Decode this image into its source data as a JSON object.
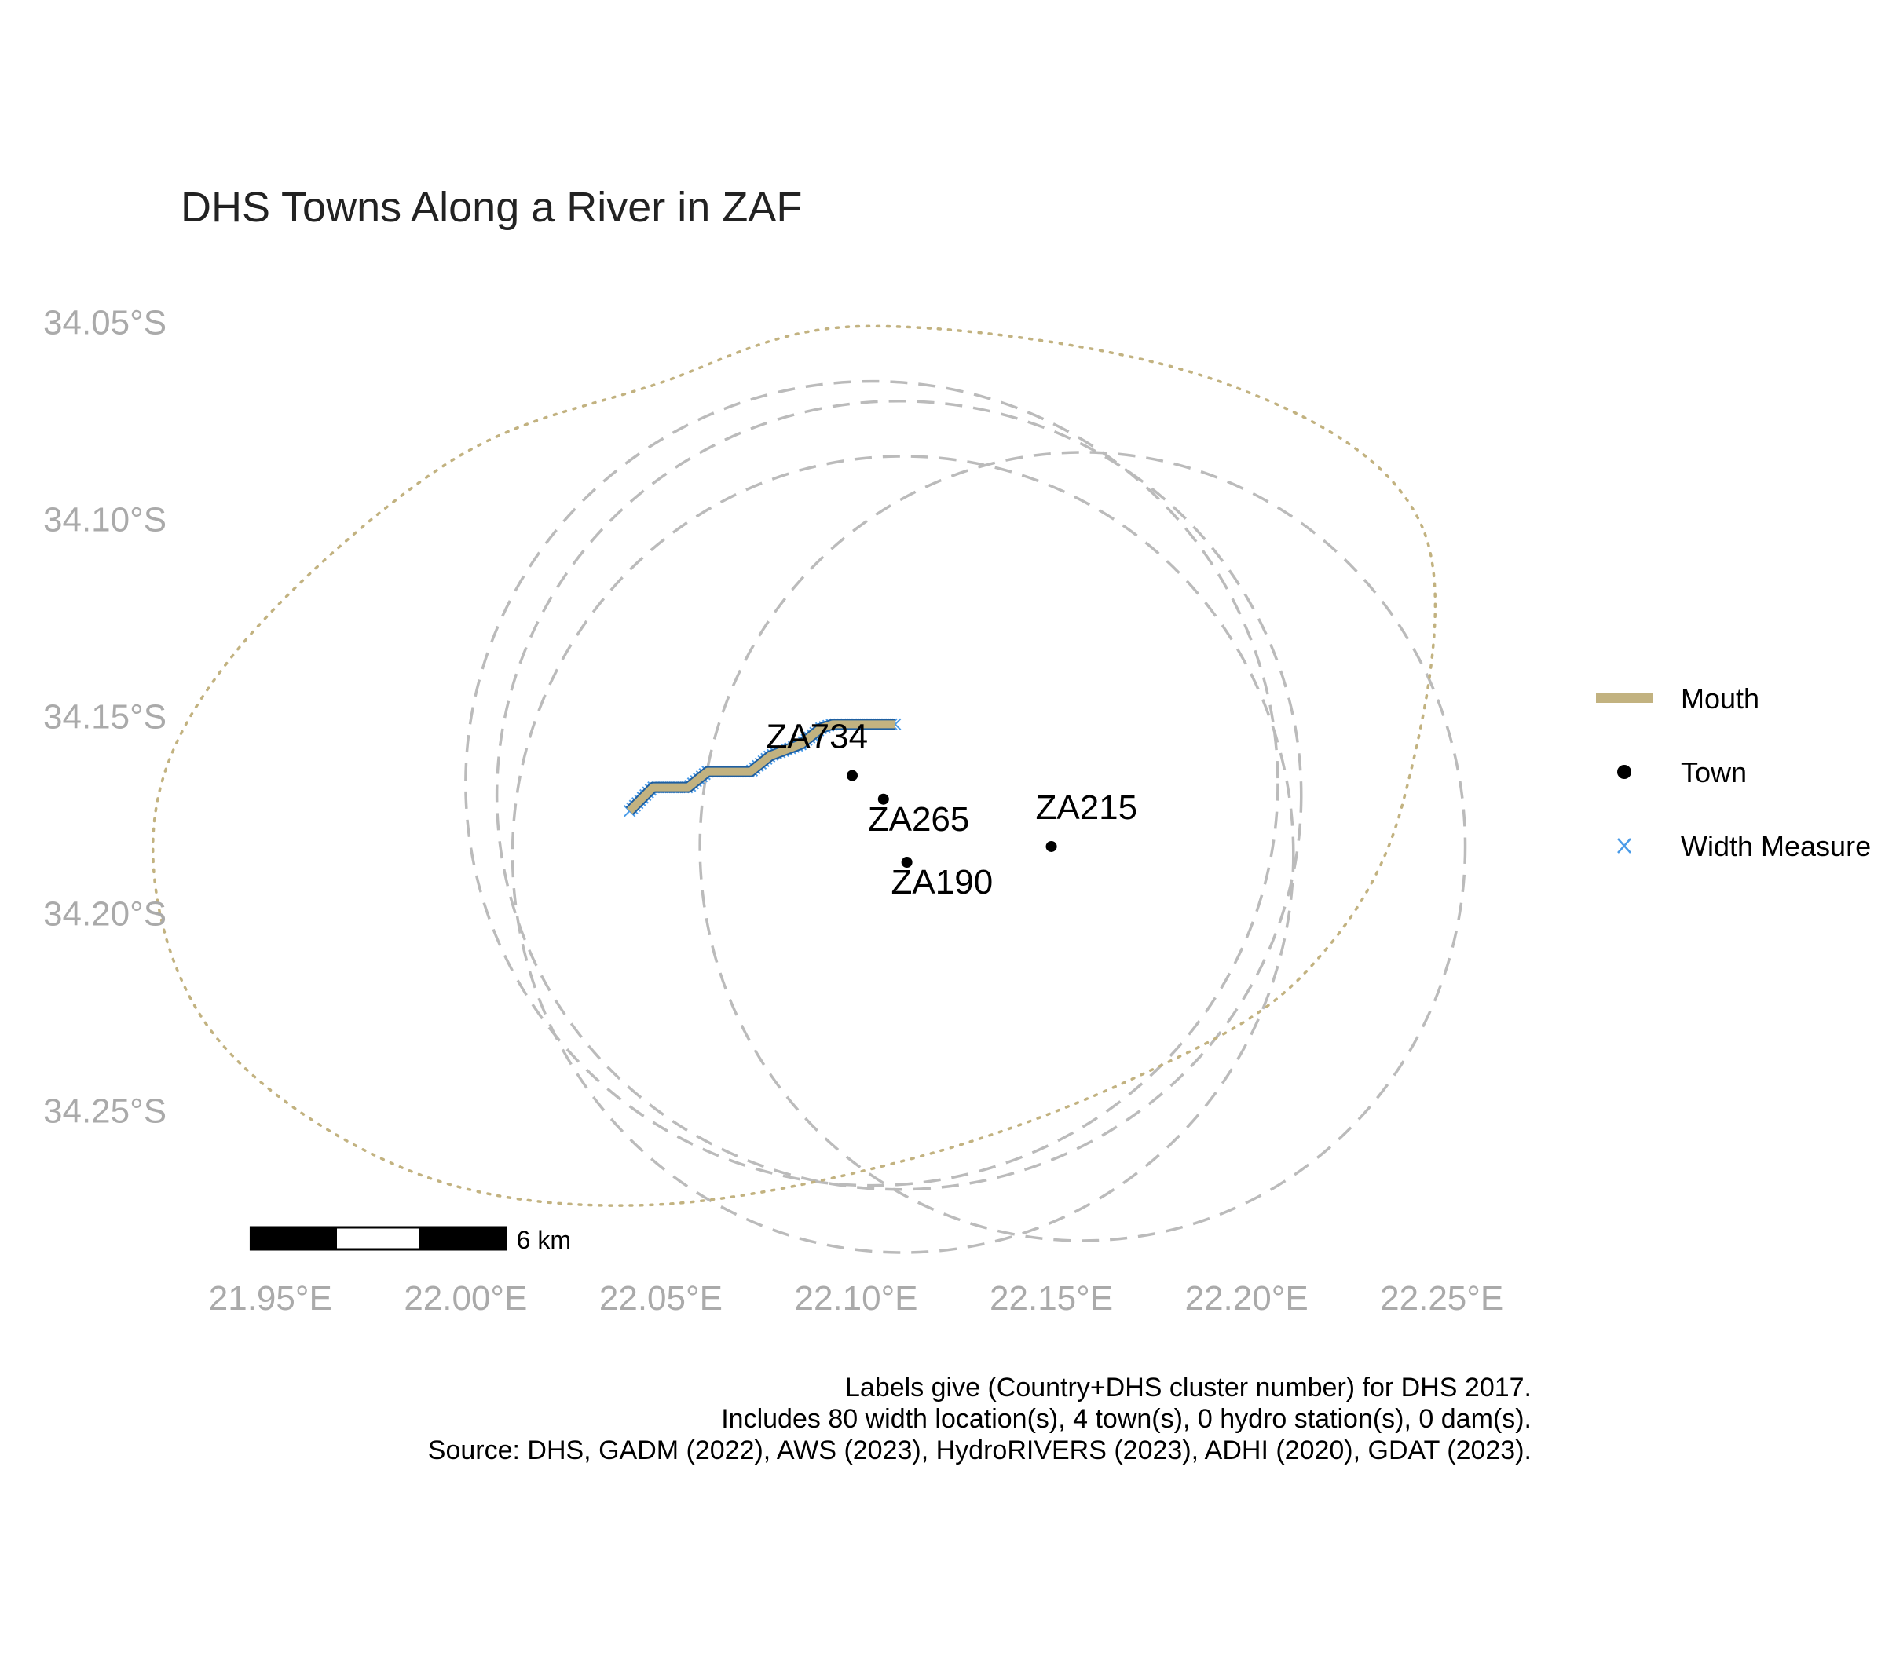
{
  "chart_data": {
    "type": "map",
    "title": "DHS Towns Along a River in ZAF",
    "xlim": [
      21.925,
      22.275
    ],
    "ylim": [
      -34.285,
      -34.035
    ],
    "x_ticks": [
      {
        "value": 21.95,
        "label": "21.95°E"
      },
      {
        "value": 22.0,
        "label": "22.00°E"
      },
      {
        "value": 22.05,
        "label": "22.05°E"
      },
      {
        "value": 22.1,
        "label": "22.10°E"
      },
      {
        "value": 22.15,
        "label": "22.15°E"
      },
      {
        "value": 22.2,
        "label": "22.20°E"
      },
      {
        "value": 22.25,
        "label": "22.25°E"
      }
    ],
    "y_ticks": [
      {
        "value": -34.05,
        "label": "34.05°S"
      },
      {
        "value": -34.1,
        "label": "34.10°S"
      },
      {
        "value": -34.15,
        "label": "34.15°S"
      },
      {
        "value": -34.2,
        "label": "34.20°S"
      },
      {
        "value": -34.25,
        "label": "34.25°S"
      }
    ],
    "grid": false,
    "legend_position": "right",
    "legend": [
      {
        "key": "mouth",
        "label": "Mouth",
        "color": "#C2B280"
      },
      {
        "key": "town",
        "label": "Town",
        "color": "#000000"
      },
      {
        "key": "width",
        "label": "Width Measure",
        "color": "#4A9BE8"
      }
    ],
    "colors": {
      "river_line": "#1F5FA0",
      "mouth": "#C2B280",
      "width_measure": "#4A9BE8",
      "buffer_town": "#BBBBBB",
      "buffer_mouth": "#C2B280",
      "axis_text": "#AAAAAA"
    },
    "river": [
      [
        22.042,
        -34.174
      ],
      [
        22.048,
        -34.168
      ],
      [
        22.057,
        -34.168
      ],
      [
        22.062,
        -34.164
      ],
      [
        22.073,
        -34.164
      ],
      [
        22.078,
        -34.16
      ],
      [
        22.086,
        -34.157
      ],
      [
        22.091,
        -34.153
      ],
      [
        22.094,
        -34.152
      ],
      [
        22.11,
        -34.152
      ]
    ],
    "width_measures": {
      "count": 80
    },
    "towns": [
      {
        "id": "ZA734",
        "lon": 22.099,
        "lat": -34.165,
        "label_dx": -0.009,
        "label_dy": 0.007
      },
      {
        "id": "ZA265",
        "lon": 22.107,
        "lat": -34.171,
        "label_dx": 0.009,
        "label_dy": -0.008
      },
      {
        "id": "ZA190",
        "lon": 22.113,
        "lat": -34.187,
        "label_dx": 0.009,
        "label_dy": -0.008
      },
      {
        "id": "ZA215",
        "lon": 22.15,
        "lat": -34.183,
        "label_dx": 0.009,
        "label_dy": 0.007
      }
    ],
    "buffers": [
      {
        "kind": "town",
        "center": [
          22.104,
          -34.167
        ],
        "rx": 0.104,
        "ry": 0.102
      },
      {
        "kind": "town",
        "center": [
          22.111,
          -34.17
        ],
        "rx": 0.103,
        "ry": 0.1
      },
      {
        "kind": "town",
        "center": [
          22.112,
          -34.185
        ],
        "rx": 0.1,
        "ry": 0.101
      },
      {
        "kind": "town",
        "center": [
          22.158,
          -34.183
        ],
        "rx": 0.098,
        "ry": 0.1
      }
    ],
    "mouth_buffer": [
      [
        22.245,
        -34.102
      ],
      [
        22.193,
        -34.065
      ],
      [
        22.103,
        -34.051
      ],
      [
        22.048,
        -34.066
      ],
      [
        21.995,
        -34.086
      ],
      [
        21.94,
        -34.135
      ],
      [
        21.92,
        -34.18
      ],
      [
        21.935,
        -34.23
      ],
      [
        21.985,
        -34.265
      ],
      [
        22.045,
        -34.274
      ],
      [
        22.115,
        -34.262
      ],
      [
        22.175,
        -34.24
      ],
      [
        22.215,
        -34.215
      ],
      [
        22.24,
        -34.172
      ],
      [
        22.245,
        -34.102
      ]
    ],
    "scale_bar": {
      "label": "6 km",
      "start_lon": 21.945,
      "km_per_segment": 2,
      "segments": 3
    },
    "caption": [
      "Labels give (Country+DHS cluster number) for DHS 2017.",
      "Includes 80 width location(s), 4 town(s), 0 hydro station(s), 0 dam(s).",
      "Source: DHS, GADM (2022), AWS (2023), HydroRIVERS (2023), ADHI (2020), GDAT (2023)."
    ]
  }
}
